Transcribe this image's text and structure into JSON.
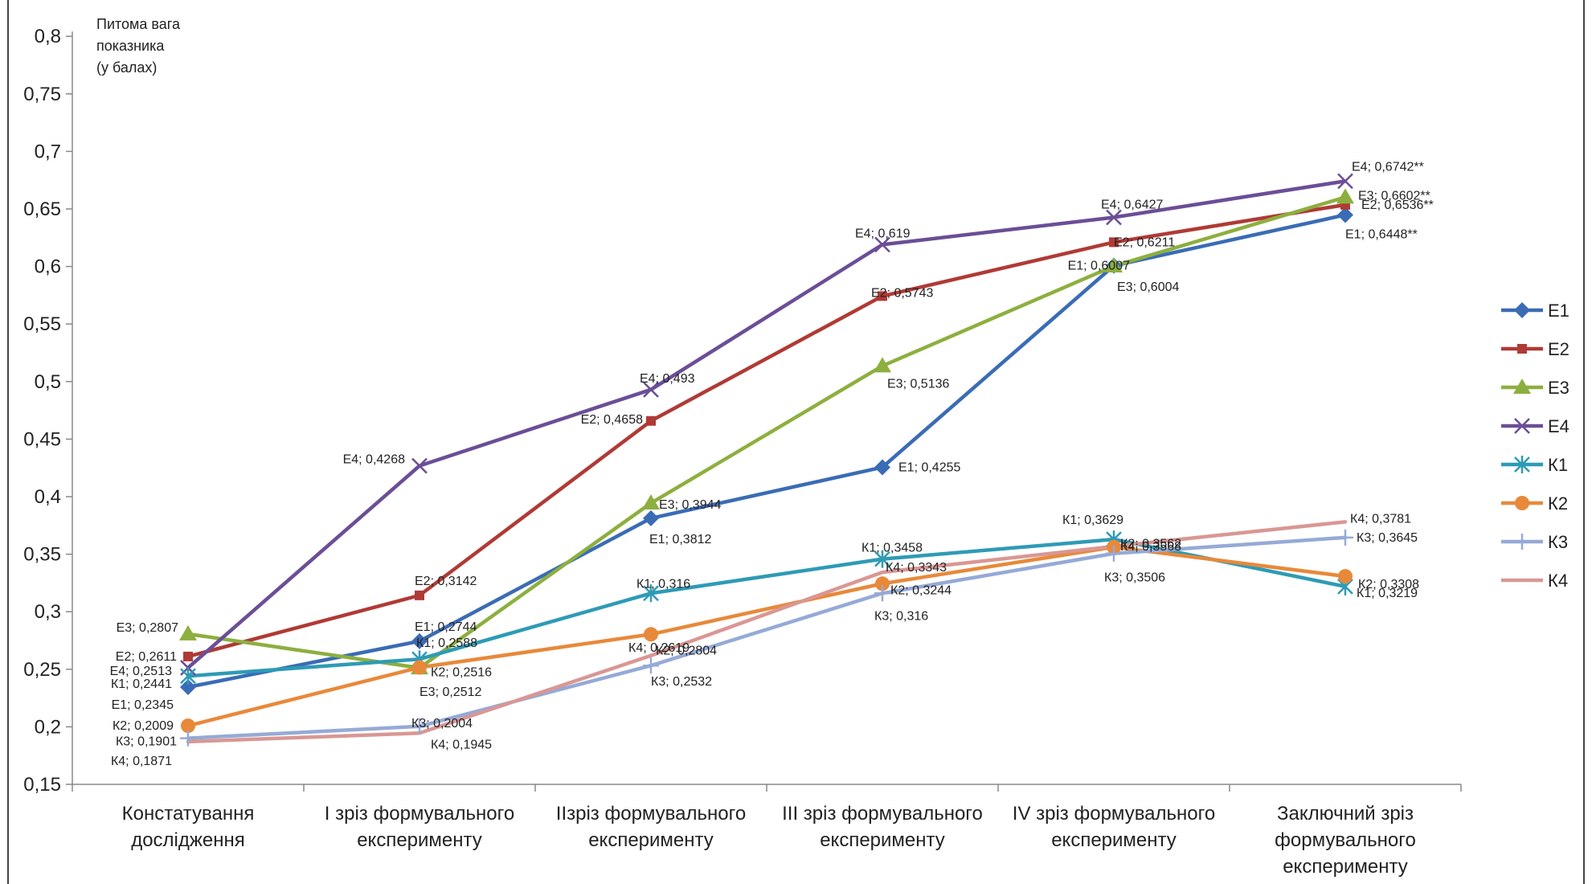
{
  "chart_data": {
    "type": "line",
    "ylabel": [
      "Питома вага",
      "показника",
      "(у балах)"
    ],
    "ylim": [
      0.15,
      0.8
    ],
    "yticks": [
      "0,15",
      "0,2",
      "0,25",
      "0,3",
      "0,35",
      "0,4",
      "0,45",
      "0,5",
      "0,55",
      "0,6",
      "0,65",
      "0,7",
      "0,75",
      "0,8"
    ],
    "categories": [
      [
        "Констатування",
        "дослідження"
      ],
      [
        "І зріз формувального",
        "експерименту"
      ],
      [
        "ІІзріз формувального",
        "експерименту"
      ],
      [
        "ІІІ зріз формувального",
        "експерименту"
      ],
      [
        "IV зріз формувального",
        "експерименту"
      ],
      [
        "Заключний зріз",
        "формувального",
        "експерименту"
      ]
    ],
    "grid": false,
    "legend": "right",
    "series": [
      {
        "name": "Е1",
        "color": "#3A6CB5",
        "marker": "diamond",
        "values": [
          0.2345,
          0.2744,
          0.3812,
          0.4255,
          0.6007,
          0.6448
        ],
        "labels": [
          "Е1; 0,2345",
          "Е1; 0,2744",
          "Е1; 0,3812",
          "Е1; 0,4255",
          "Е1; 0,6007",
          "Е1; 0,6448**"
        ]
      },
      {
        "name": "Е2",
        "color": "#B03A35",
        "marker": "square",
        "values": [
          0.2611,
          0.3142,
          0.4658,
          0.5743,
          0.6211,
          0.6536
        ],
        "labels": [
          "Е2; 0,2611",
          "Е2; 0,3142",
          "Е2; 0,4658",
          "Е2; 0,5743",
          "Е2; 0,6211",
          "Е2; 0,6536**"
        ]
      },
      {
        "name": "Е3",
        "color": "#8DAF3F",
        "marker": "triangle",
        "values": [
          0.2807,
          0.2512,
          0.3944,
          0.5136,
          0.6004,
          0.6602
        ],
        "labels": [
          "Е3; 0,2807",
          "Е3; 0,2512",
          "Е3; 0,3944",
          "Е3; 0,5136",
          "Е3; 0,6004",
          "Е3; 0,6602**"
        ]
      },
      {
        "name": "Е4",
        "color": "#6B4E96",
        "marker": "x",
        "values": [
          0.2513,
          0.4268,
          0.493,
          0.619,
          0.6427,
          0.6742
        ],
        "labels": [
          "Е4; 0,2513",
          "Е4; 0,4268",
          "Е4; 0,493",
          "Е4; 0,619",
          "Е4; 0,6427",
          "Е4; 0,6742**"
        ]
      },
      {
        "name": "К1",
        "color": "#2E9BB5",
        "marker": "star",
        "values": [
          0.2441,
          0.2588,
          0.316,
          0.3458,
          0.3629,
          0.3219
        ],
        "labels": [
          "К1; 0,2441",
          "К1; 0,2588",
          "К1; 0,316",
          "К1; 0,3458",
          "К1; 0,3629",
          "К1; 0,3219"
        ]
      },
      {
        "name": "К2",
        "color": "#E8893A",
        "marker": "circle",
        "values": [
          0.2009,
          0.2516,
          0.2804,
          0.3244,
          0.3562,
          0.3308
        ],
        "labels": [
          "К2; 0,2009",
          "К2; 0,2516",
          "К2; 0,2804",
          "К2; 0,3244",
          "К2; 0,3562",
          "К2; 0,3308"
        ]
      },
      {
        "name": "К3",
        "color": "#95AAD6",
        "marker": "plus",
        "values": [
          0.1901,
          0.2004,
          0.2532,
          0.316,
          0.3506,
          0.3645
        ],
        "labels": [
          "К3; 0,1901",
          "К3; 0,2004",
          "К3; 0,2532",
          "К3; 0,316",
          "К3; 0,3506",
          "К3; 0,3645"
        ]
      },
      {
        "name": "К4",
        "color": "#D99794",
        "marker": "none",
        "values": [
          0.1871,
          0.1945,
          0.2619,
          0.3343,
          0.3568,
          0.3781
        ],
        "labels": [
          "К4; 0,1871",
          "К4; 0,1945",
          "К4; 0,2619",
          "К4; 0,3343",
          "К4; 0,3568",
          "К4; 0,3781"
        ]
      }
    ]
  }
}
